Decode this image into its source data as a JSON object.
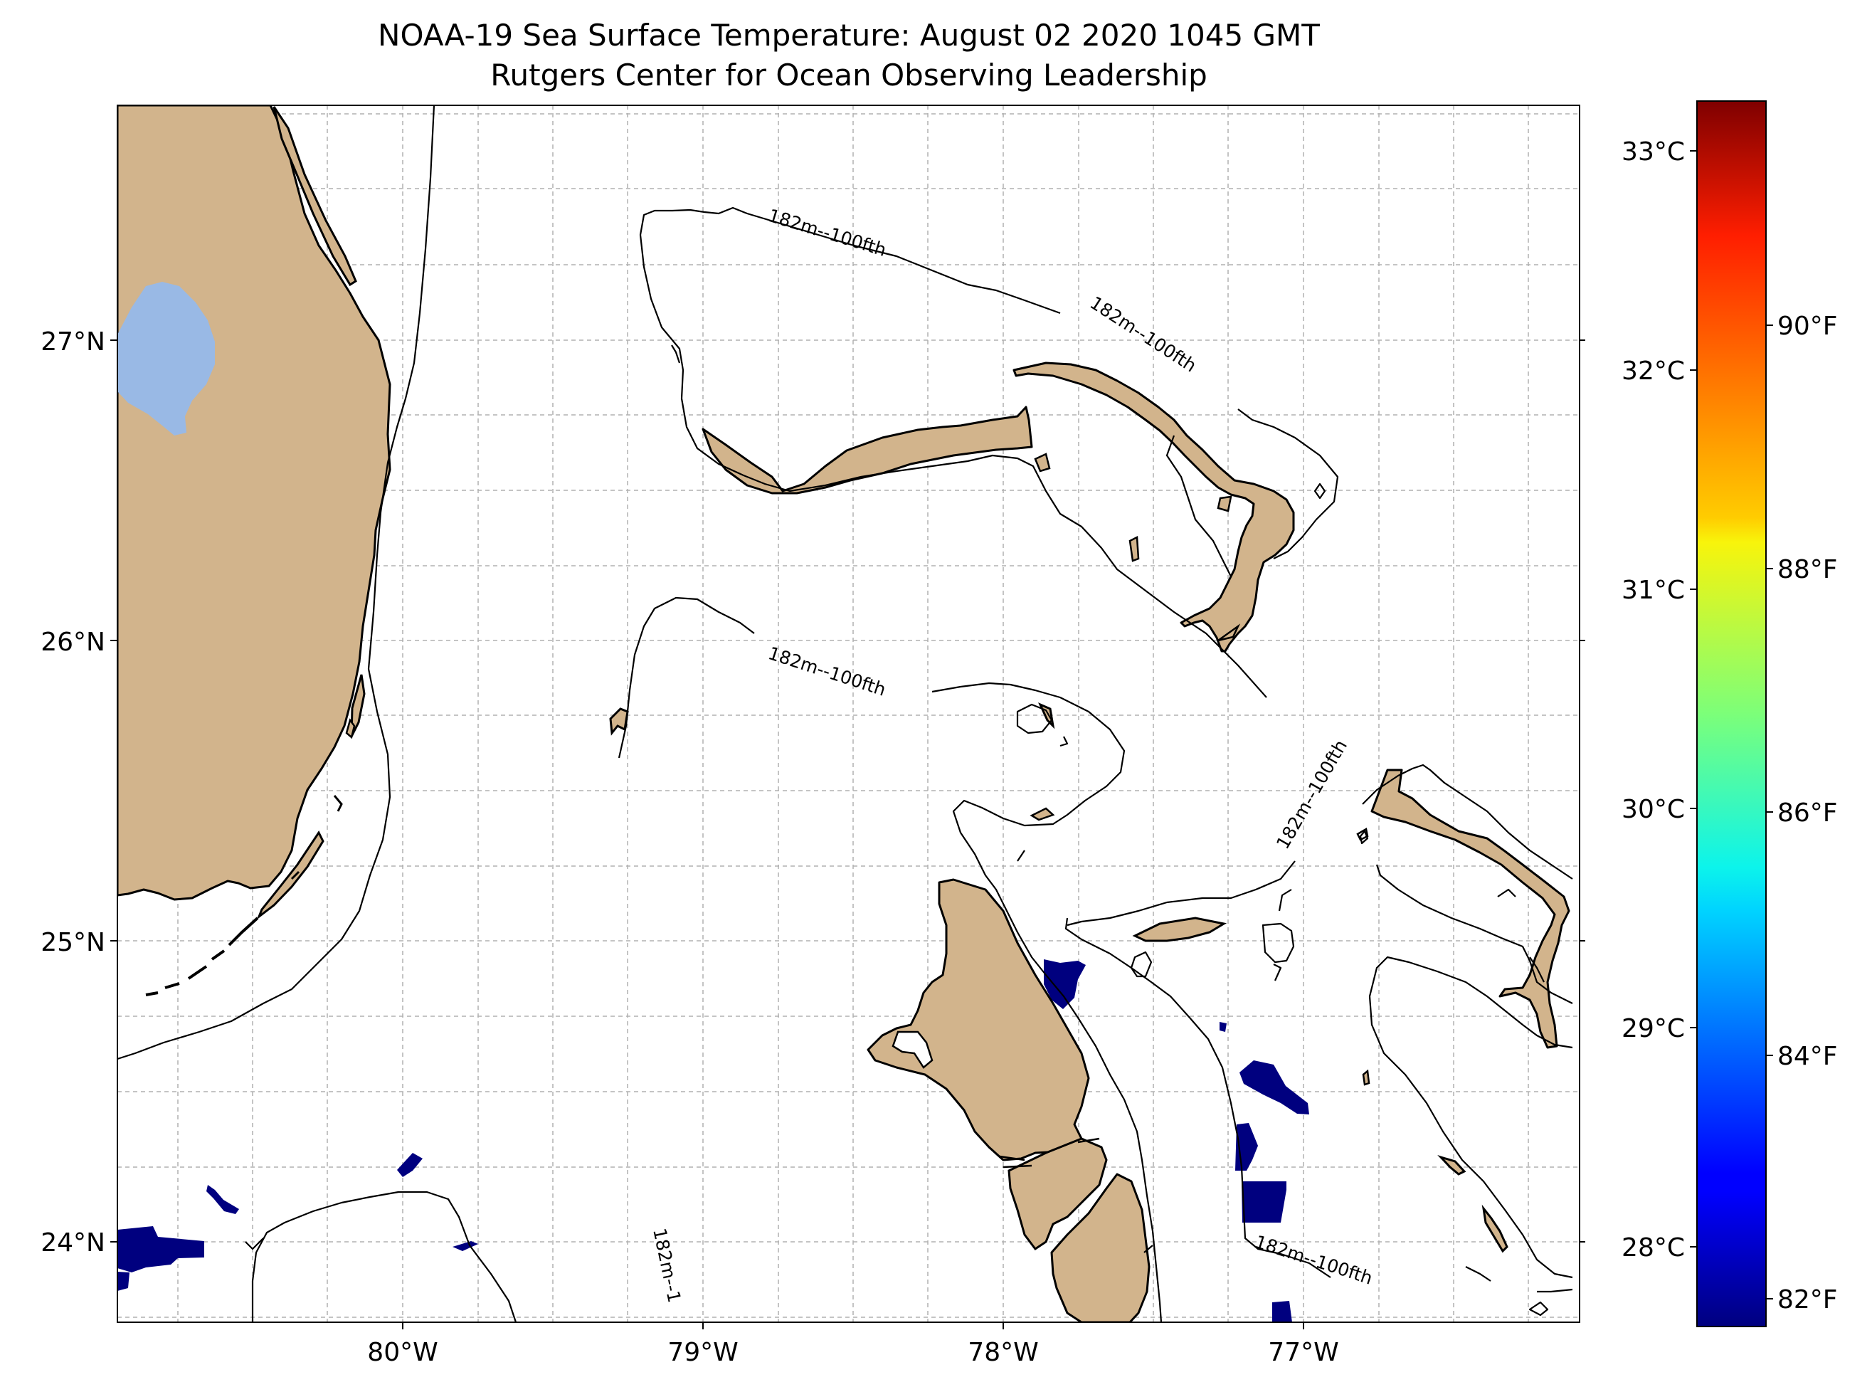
{
  "title": {
    "line1": "NOAA-19 Sea Surface Temperature: August 02 2020 1045 GMT",
    "line2": "Rutgers Center for Ocean Observing Leadership"
  },
  "axes": {
    "lat_labels": [
      "27°N",
      "26°N",
      "25°N",
      "24°N"
    ],
    "lon_labels": [
      "80°W",
      "79°W",
      "78°W",
      "77°W"
    ]
  },
  "contour_labels": [
    "182m--100fth",
    "182m--100fth",
    "182m--100fth",
    "182m--100fth",
    "182m--100fth",
    "182m--1"
  ],
  "colorbar": {
    "celsius_labels": [
      "33°C",
      "32°C",
      "31°C",
      "30°C",
      "29°C",
      "28°C"
    ],
    "fahrenheit_labels": [
      "90°F",
      "88°F",
      "86°F",
      "84°F",
      "82°F"
    ]
  },
  "colors": {
    "land": "#d2b48c",
    "lake": "#99b9e5",
    "sst_cold": "#000080",
    "grid": "#b0b0b0"
  }
}
